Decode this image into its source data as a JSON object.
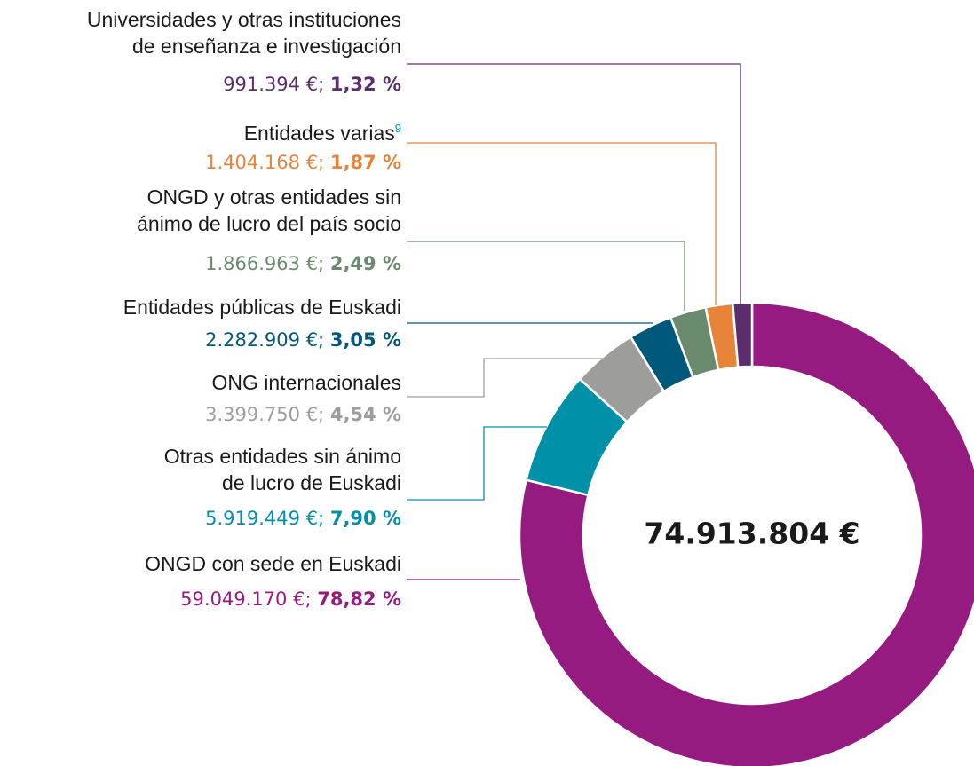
{
  "chart_data": {
    "type": "pie",
    "donut": true,
    "center_label": "74.913.804 €",
    "categories": [
      "ONGD con sede en Euskadi",
      "Otras entidades sin ánimo\nde lucro de Euskadi",
      "ONG internacionales",
      "Entidades públicas de Euskadi",
      "ONGD y otras entidades sin\nánimo de lucro del país socio",
      "Entidades varias",
      "Universidades y otras instituciones\nde enseñanza e investigación"
    ],
    "notes": [
      null,
      null,
      null,
      null,
      null,
      "9",
      null
    ],
    "values": [
      59049170,
      5919449,
      3399750,
      2282909,
      1866963,
      1404168,
      991394
    ],
    "value_labels": [
      "59.049.170 €;",
      "5.919.449 €;",
      "3.399.750 €;",
      "2.282.909 €;",
      "1.866.963 €;",
      "1.404.168 €;",
      "991.394 €;"
    ],
    "percentages": [
      78.82,
      7.9,
      4.54,
      3.05,
      2.49,
      1.87,
      1.32
    ],
    "percentage_labels": [
      "78,82 %",
      "7,90 %",
      "4,54 %",
      "3,05 %",
      "2,49 %",
      "1,87 %",
      "1,32 %"
    ],
    "colors": [
      "#951b81",
      "#0090a8",
      "#9d9d9c",
      "#00587a",
      "#6a8a6d",
      "#e8833a",
      "#5b2d6b"
    ]
  }
}
